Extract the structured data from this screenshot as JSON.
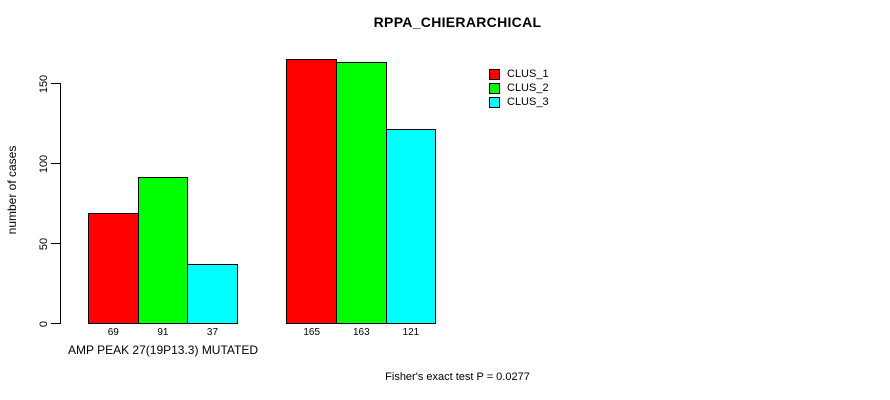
{
  "chart_data": {
    "type": "bar",
    "title": "RPPA_CHIERARCHICAL",
    "ylabel": "number of cases",
    "xlabel": "",
    "categories": [
      "AMP PEAK 27(19P13.3) MUTATED",
      ""
    ],
    "series": [
      {
        "name": "CLUS_1",
        "color": "#ff0000",
        "values": [
          69,
          165
        ]
      },
      {
        "name": "CLUS_2",
        "color": "#00ff00",
        "values": [
          91,
          163
        ]
      },
      {
        "name": "CLUS_3",
        "color": "#00ffff",
        "values": [
          37,
          121
        ]
      }
    ],
    "yticks": [
      0,
      50,
      100,
      150
    ],
    "ylim": [
      0,
      165
    ],
    "bar_value_labels": [
      [
        69,
        91,
        37
      ],
      [
        165,
        163,
        121
      ]
    ],
    "grid": false,
    "legend": {
      "position": "top-right",
      "entries": [
        "CLUS_1",
        "CLUS_2",
        "CLUS_3"
      ]
    },
    "annotation": "Fisher's exact test P = 0.0277"
  },
  "colors": {
    "clus_1": "#ff0000",
    "clus_2": "#00ff00",
    "clus_3": "#00ffff",
    "axis": "#000000",
    "background": "#ffffff"
  }
}
